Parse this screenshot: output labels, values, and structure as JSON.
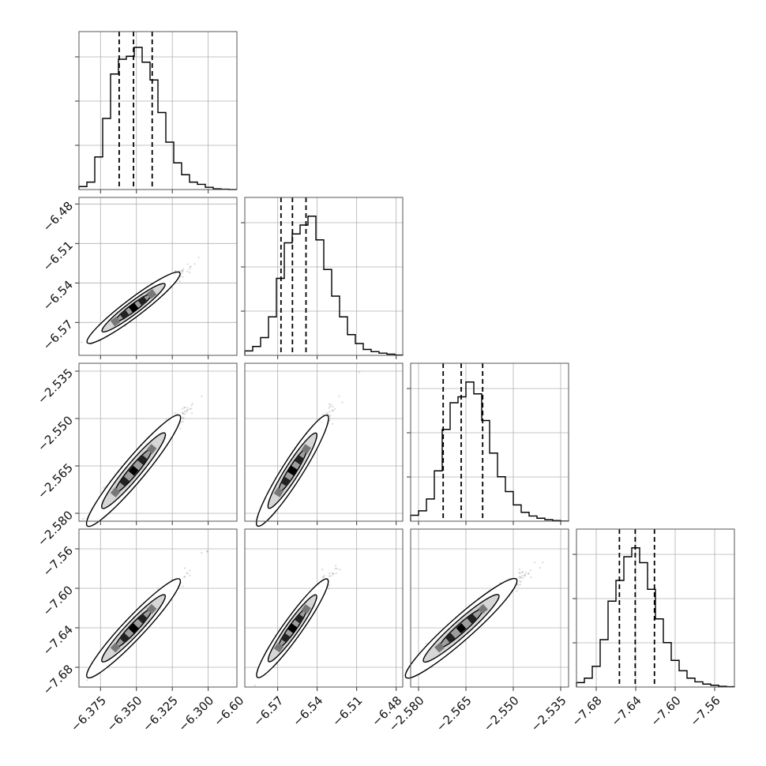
{
  "chart_data": {
    "type": "corner",
    "grid": true,
    "dims": [
      {
        "range": [
          -6.39,
          -6.28
        ],
        "ticks": [
          -6.375,
          -6.35,
          -6.325,
          -6.3
        ],
        "tick_labels": [
          "−6.375",
          "−6.350",
          "−6.325",
          "−6.300"
        ],
        "quantiles": [
          -6.362,
          -6.352,
          -6.339
        ],
        "hist": [
          0.02,
          0.05,
          0.22,
          0.48,
          0.78,
          0.88,
          0.9,
          0.96,
          0.86,
          0.74,
          0.52,
          0.32,
          0.18,
          0.1,
          0.05,
          0.035,
          0.015,
          0.005,
          0.002,
          0.0
        ]
      },
      {
        "range": [
          -6.595,
          -6.475
        ],
        "ticks": [
          -6.6,
          -6.57,
          -6.54,
          -6.51,
          -6.48
        ],
        "tick_labels": [
          "−6.60",
          "−6.57",
          "−6.54",
          "−6.51",
          "−6.48"
        ],
        "quantiles": [
          -6.5675,
          -6.5588,
          -6.5485
        ],
        "hist": [
          0.03,
          0.06,
          0.12,
          0.26,
          0.52,
          0.76,
          0.82,
          0.88,
          0.94,
          0.78,
          0.58,
          0.4,
          0.26,
          0.14,
          0.08,
          0.04,
          0.025,
          0.015,
          0.008,
          0.002
        ]
      },
      {
        "range": [
          -2.5825,
          -2.5325
        ],
        "ticks": [
          -2.58,
          -2.565,
          -2.55,
          -2.535
        ],
        "tick_labels": [
          "−2.580",
          "−2.565",
          "−2.550",
          "−2.535"
        ],
        "quantiles": [
          -2.5722,
          -2.5665,
          -2.5597
        ],
        "hist": [
          0.04,
          0.07,
          0.15,
          0.34,
          0.62,
          0.8,
          0.84,
          0.94,
          0.86,
          0.68,
          0.46,
          0.3,
          0.2,
          0.11,
          0.06,
          0.035,
          0.02,
          0.01,
          0.004,
          0.001
        ]
      },
      {
        "range": [
          -7.7,
          -7.54
        ],
        "ticks": [
          -7.68,
          -7.64,
          -7.6,
          -7.56
        ],
        "tick_labels": [
          "−7.68",
          "−7.64",
          "−7.60",
          "−7.56"
        ],
        "quantiles": [
          -7.6565,
          -7.6405,
          -7.621
        ],
        "hist": [
          0.03,
          0.06,
          0.14,
          0.32,
          0.58,
          0.72,
          0.88,
          0.94,
          0.84,
          0.66,
          0.46,
          0.3,
          0.18,
          0.11,
          0.06,
          0.035,
          0.02,
          0.012,
          0.005,
          0.002
        ]
      }
    ],
    "correlation": 0.97
  }
}
